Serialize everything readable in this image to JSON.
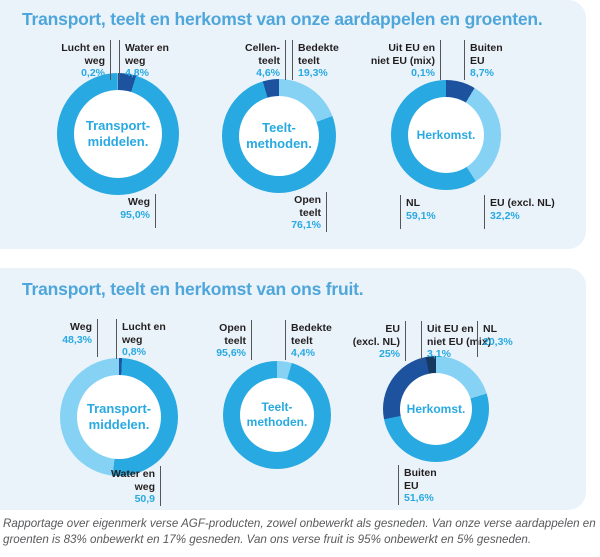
{
  "panels": [
    {
      "title": "Transport, teelt en herkomst van onze aardappelen en groenten."
    },
    {
      "title": "Transport, teelt en herkomst van ons fruit."
    }
  ],
  "footer": "Rapportage over eigenmerk verse AGF-producten, zowel onbewerkt als gesneden. Van onze verse aardappelen en groenten is 83% onbewerkt en 17% gesneden. Van ons verse fruit is 95% onbewerkt en 5% gesneden.",
  "colors": {
    "medium": "#29A9E1",
    "light": "#86D2F4",
    "dark": "#1D539E",
    "darkest": "#17395F",
    "panel_bg": "#EAF3FA",
    "title": "#4FA6DA",
    "pct_text": "#29A9E1",
    "label_text": "#231F20",
    "leader_line": "#55565A"
  },
  "chart_data": [
    {
      "type": "pie",
      "panel": 0,
      "center_label": [
        "Transport-",
        "middelen."
      ],
      "slices": [
        {
          "label": "Water en weg",
          "label_lines": [
            "Water en",
            "weg"
          ],
          "pct": "4,8%",
          "value": 4.8,
          "color": "dark"
        },
        {
          "label": "Weg",
          "label_lines": [
            "Weg"
          ],
          "pct": "95,0%",
          "value": 95.0,
          "color": "medium"
        },
        {
          "label": "Lucht en weg",
          "label_lines": [
            "Lucht en",
            "weg"
          ],
          "pct": "0,2%",
          "value": 0.2,
          "color": "light"
        }
      ]
    },
    {
      "type": "pie",
      "panel": 0,
      "center_label": [
        "Teelt-",
        "methoden."
      ],
      "slices": [
        {
          "label": "Bedekte teelt",
          "label_lines": [
            "Bedekte",
            "teelt"
          ],
          "pct": "19,3%",
          "value": 19.3,
          "color": "light"
        },
        {
          "label": "Open teelt",
          "label_lines": [
            "Open",
            "teelt"
          ],
          "pct": "76,1%",
          "value": 76.1,
          "color": "medium"
        },
        {
          "label": "Cellenteelt",
          "label_lines": [
            "Cellen-",
            "teelt"
          ],
          "pct": "4,6%",
          "value": 4.6,
          "color": "dark"
        }
      ]
    },
    {
      "type": "pie",
      "panel": 0,
      "center_label": [
        "Herkomst."
      ],
      "slices": [
        {
          "label": "Buiten EU",
          "label_lines": [
            "Buiten",
            "EU"
          ],
          "pct": "8,7%",
          "value": 8.7,
          "color": "dark"
        },
        {
          "label": "EU (excl. NL)",
          "label_lines": [
            "EU (excl. NL)"
          ],
          "pct": "32,2%",
          "value": 32.2,
          "color": "light"
        },
        {
          "label": "NL",
          "label_lines": [
            "NL"
          ],
          "pct": "59,1%",
          "value": 59.1,
          "color": "medium"
        },
        {
          "label": "Uit EU en niet EU (mix)",
          "label_lines": [
            "Uit EU en",
            "niet EU (mix)"
          ],
          "pct": "0,1%",
          "value": 0.1,
          "color": "darkest"
        }
      ]
    },
    {
      "type": "pie",
      "panel": 1,
      "center_label": [
        "Transport-",
        "middelen."
      ],
      "slices": [
        {
          "label": "Lucht en weg",
          "label_lines": [
            "Lucht en",
            "weg"
          ],
          "pct": "0,8%",
          "value": 0.8,
          "color": "dark"
        },
        {
          "label": "Water en weg",
          "label_lines": [
            "Water en",
            "weg"
          ],
          "pct": "50,9",
          "value": 50.9,
          "color": "medium"
        },
        {
          "label": "Weg",
          "label_lines": [
            "Weg"
          ],
          "pct": "48,3%",
          "value": 48.3,
          "color": "light"
        }
      ]
    },
    {
      "type": "pie",
      "panel": 1,
      "center_label": [
        "Teelt-",
        "methoden."
      ],
      "slices": [
        {
          "label": "Bedekte teelt",
          "label_lines": [
            "Bedekte",
            "teelt"
          ],
          "pct": "4,4%",
          "value": 4.4,
          "color": "light"
        },
        {
          "label": "Open teelt",
          "label_lines": [
            "Open",
            "teelt"
          ],
          "pct": "95,6%",
          "value": 95.6,
          "color": "medium"
        }
      ]
    },
    {
      "type": "pie",
      "panel": 1,
      "center_label": [
        "Herkomst."
      ],
      "slices": [
        {
          "label": "NL",
          "label_lines": [
            "NL"
          ],
          "pct": "20,3%",
          "value": 20.3,
          "color": "light"
        },
        {
          "label": "Buiten EU",
          "label_lines": [
            "Buiten",
            "EU"
          ],
          "pct": "51,6%",
          "value": 51.6,
          "color": "medium"
        },
        {
          "label": "EU (excl. NL)",
          "label_lines": [
            "EU",
            "(excl. NL)"
          ],
          "pct": "25%",
          "value": 25.0,
          "color": "dark"
        },
        {
          "label": "Uit EU en niet EU (mix)",
          "label_lines": [
            "Uit EU en",
            "niet EU (mix)"
          ],
          "pct": "3,1%",
          "value": 3.1,
          "color": "darkest"
        }
      ]
    }
  ]
}
